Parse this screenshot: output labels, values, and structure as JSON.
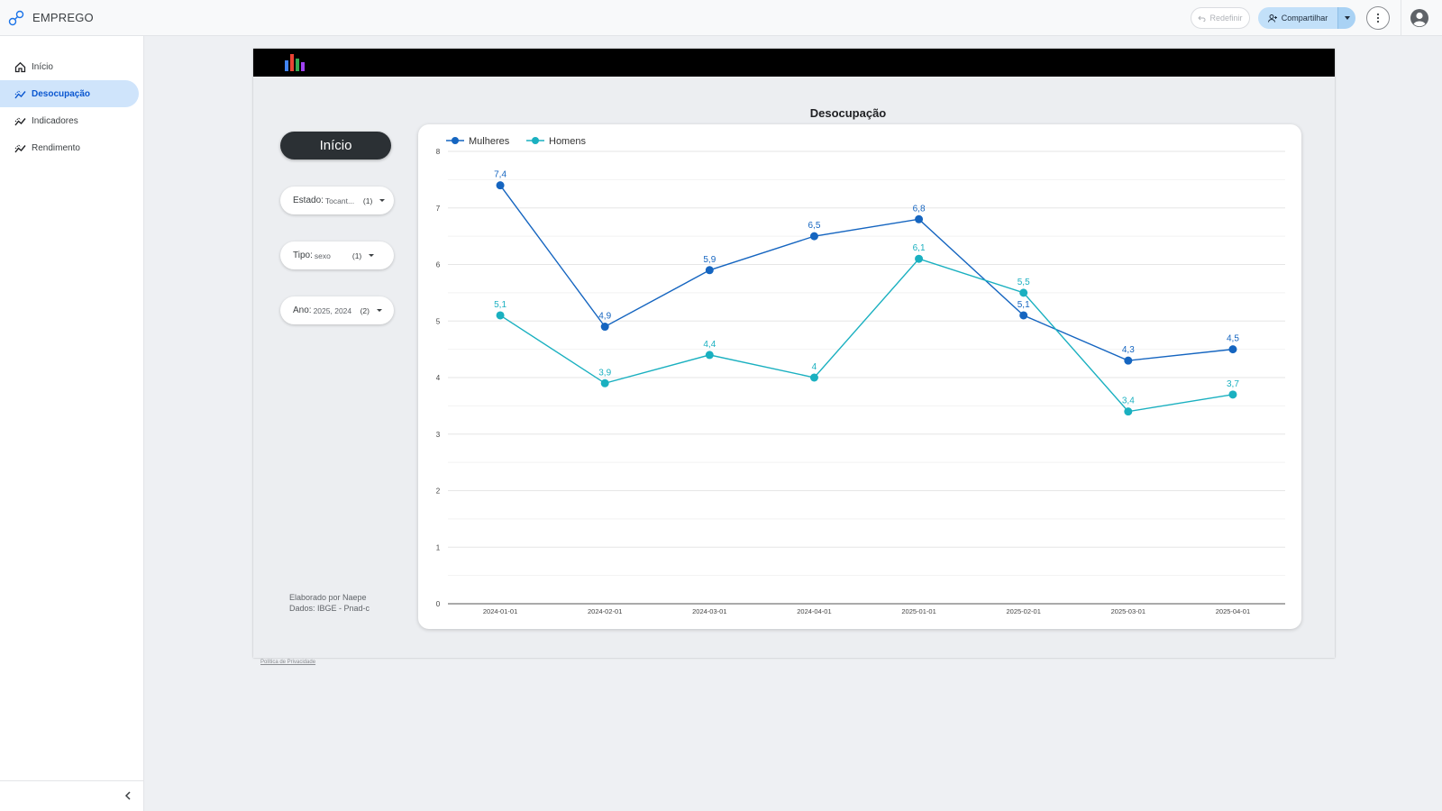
{
  "app": {
    "title": "EMPREGO"
  },
  "topbar": {
    "reset_label": "Redefinir",
    "share_label": "Compartilhar"
  },
  "sidebar": {
    "items": [
      {
        "label": "Início",
        "icon": "home-icon",
        "active": false
      },
      {
        "label": "Desocupação",
        "icon": "trend-icon",
        "active": true
      },
      {
        "label": "Indicadores",
        "icon": "trend-icon",
        "active": false
      },
      {
        "label": "Rendimento",
        "icon": "trend-icon",
        "active": false
      }
    ]
  },
  "report": {
    "home_button": "Início",
    "filters": [
      {
        "label": "Estado",
        "value": "Tocant...",
        "count": "(1)"
      },
      {
        "label": "Tipo",
        "value": "sexo",
        "count": "(1)"
      },
      {
        "label": "Ano",
        "value": "2025, 2024",
        "count": "(2)"
      }
    ],
    "footnote_line1": "Elaborado por Naepe",
    "footnote_line2": "Dados: IBGE - Pnad-c",
    "privacy_link": "Política de Privacidade"
  },
  "colors": {
    "accent": "#0b57d0",
    "mulheres": "#1565c0",
    "homens": "#1ab0c0"
  },
  "chart_data": {
    "type": "line",
    "title": "Desocupação",
    "x": [
      "2024-01-01",
      "2024-02-01",
      "2024-03-01",
      "2024-04-01",
      "2025-01-01",
      "2025-02-01",
      "2025-03-01",
      "2025-04-01"
    ],
    "series": [
      {
        "name": "Mulheres",
        "color": "#1565c0",
        "values": [
          7.4,
          4.9,
          5.9,
          6.5,
          6.8,
          5.1,
          4.3,
          4.5
        ],
        "labels": [
          "7,4",
          "4,9",
          "5,9",
          "6,5",
          "6,8",
          "5,1",
          "4,3",
          "4,5"
        ]
      },
      {
        "name": "Homens",
        "color": "#1ab0c0",
        "values": [
          5.1,
          3.9,
          4.4,
          4.0,
          6.1,
          5.5,
          3.4,
          3.7
        ],
        "labels": [
          "5,1",
          "3,9",
          "4,4",
          "4",
          "6,1",
          "5,5",
          "3,4",
          "3,7"
        ]
      }
    ],
    "yticks": [
      0,
      1,
      2,
      3,
      4,
      5,
      6,
      7,
      8
    ],
    "ylim": [
      0,
      8
    ],
    "legend": "top-left",
    "grid": true
  }
}
